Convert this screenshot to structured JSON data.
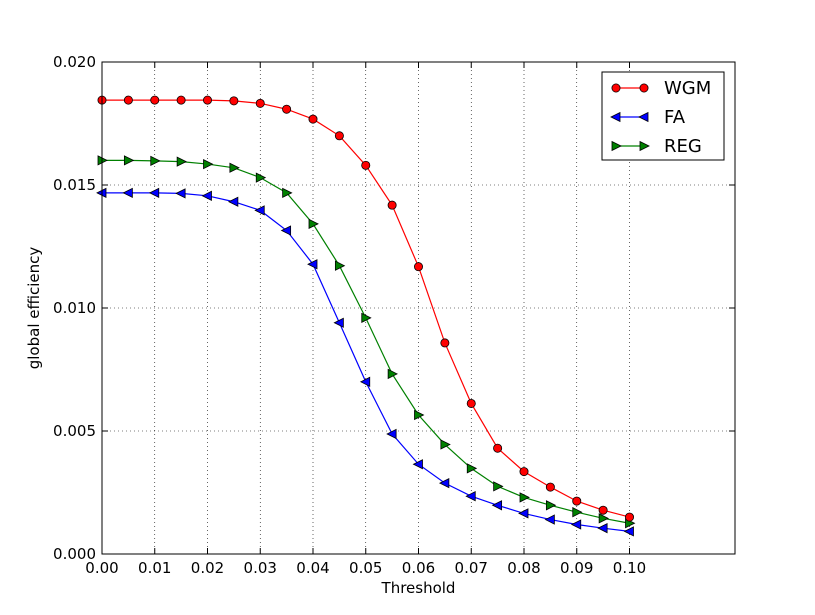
{
  "chart_data": {
    "type": "line",
    "title": "",
    "xlabel": "Threshold",
    "ylabel": "global efficiency",
    "xlim": [
      0.0,
      0.12
    ],
    "ylim": [
      0.0,
      0.02
    ],
    "grid": true,
    "legend_position": "top-right",
    "x_ticks": [
      0.0,
      0.01,
      0.02,
      0.03,
      0.04,
      0.05,
      0.06,
      0.07,
      0.08,
      0.09,
      0.1
    ],
    "x_tick_labels": [
      "0.00",
      "0.01",
      "0.02",
      "0.03",
      "0.04",
      "0.05",
      "0.06",
      "0.07",
      "0.08",
      "0.09",
      "0.10"
    ],
    "y_ticks": [
      0.0,
      0.005,
      0.01,
      0.015,
      0.02
    ],
    "y_tick_labels": [
      "0.000",
      "0.005",
      "0.010",
      "0.015",
      "0.020"
    ],
    "x": [
      0.0,
      0.005,
      0.01,
      0.015,
      0.02,
      0.025,
      0.03,
      0.035,
      0.04,
      0.045,
      0.05,
      0.055,
      0.06,
      0.065,
      0.07,
      0.075,
      0.08,
      0.085,
      0.09,
      0.095,
      0.1
    ],
    "series": [
      {
        "name": "WGM",
        "color": "#ff0000",
        "marker": "circle",
        "values": [
          0.01845,
          0.01845,
          0.01845,
          0.01845,
          0.01845,
          0.01842,
          0.01832,
          0.01808,
          0.01768,
          0.017,
          0.0158,
          0.01418,
          0.01168,
          0.00858,
          0.00612,
          0.0043,
          0.00335,
          0.00272,
          0.00215,
          0.00178,
          0.0015
        ]
      },
      {
        "name": "FA",
        "color": "#0000ff",
        "marker": "triangle-left",
        "values": [
          0.01468,
          0.01468,
          0.01468,
          0.01466,
          0.01456,
          0.01432,
          0.01397,
          0.01315,
          0.01178,
          0.0094,
          0.007,
          0.00488,
          0.00365,
          0.00288,
          0.00235,
          0.00198,
          0.00165,
          0.0014,
          0.0012,
          0.00105,
          0.00092
        ]
      },
      {
        "name": "REG",
        "color": "#008000",
        "marker": "triangle-right",
        "values": [
          0.016,
          0.016,
          0.01598,
          0.01595,
          0.01585,
          0.0157,
          0.0153,
          0.01468,
          0.01342,
          0.01172,
          0.0096,
          0.00732,
          0.00565,
          0.00445,
          0.00348,
          0.00275,
          0.0023,
          0.00198,
          0.0017,
          0.00145,
          0.00125
        ]
      }
    ]
  }
}
